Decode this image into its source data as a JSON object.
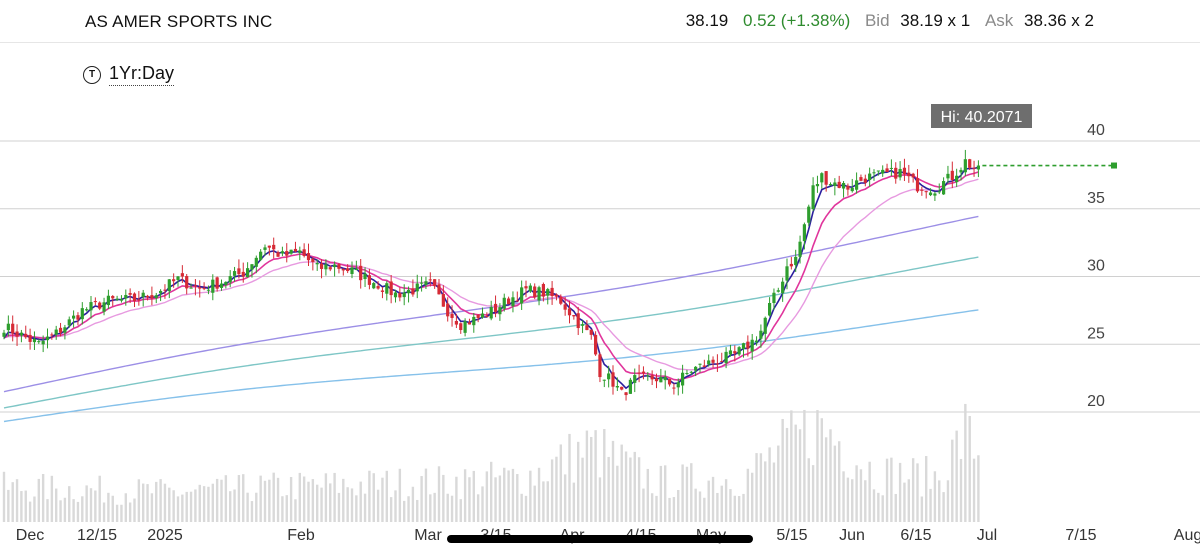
{
  "header": {
    "name": "AS AMER SPORTS INC",
    "last": "38.19",
    "change": "0.52 (+1.38%)",
    "bid_label": "Bid",
    "bid": "38.19 x 1",
    "ask_label": "Ask",
    "ask": "38.36 x 2"
  },
  "range": {
    "icon": "T",
    "label": "1Yr:Day"
  },
  "chart_data": {
    "type": "candlestick",
    "hi_label": "Hi: 40.2071",
    "last_price": 38.19,
    "ylim": [
      15,
      41
    ],
    "yticks": [
      40,
      35,
      30,
      25,
      20
    ],
    "xticks": [
      "Dec",
      "12/15",
      "2025",
      "Feb",
      "Mar",
      "3/15",
      "Apr",
      "4/15",
      "May",
      "5/15",
      "Jun",
      "6/15",
      "Jul",
      "7/15",
      "Aug"
    ],
    "colors": {
      "up": "#2e9e2e",
      "down": "#d62b36",
      "ma5": "#2b1e9e",
      "ma10": "#e0359c",
      "ma20": "#e79ae0",
      "ma50": "#9c8fe6",
      "ma100": "#7ec6c6",
      "ma200": "#86c1ea",
      "volume": "#d9d9d9"
    },
    "close_keypoints": [
      [
        0,
        26.3
      ],
      [
        8,
        25.0
      ],
      [
        12,
        25.8
      ],
      [
        18,
        27.5
      ],
      [
        24,
        28.2
      ],
      [
        30,
        28.3
      ],
      [
        35,
        28.8
      ],
      [
        40,
        29.8
      ],
      [
        45,
        29.1
      ],
      [
        50,
        29.6
      ],
      [
        55,
        30.3
      ],
      [
        60,
        32.3
      ],
      [
        64,
        31.5
      ],
      [
        68,
        31.8
      ],
      [
        72,
        30.6
      ],
      [
        76,
        30.8
      ],
      [
        80,
        30.4
      ],
      [
        85,
        29.6
      ],
      [
        90,
        28.7
      ],
      [
        94,
        29.0
      ],
      [
        98,
        29.4
      ],
      [
        102,
        27.5
      ],
      [
        105,
        26.5
      ],
      [
        108,
        26.8
      ],
      [
        112,
        27.4
      ],
      [
        116,
        28.3
      ],
      [
        120,
        29.0
      ],
      [
        124,
        28.8
      ],
      [
        128,
        28.2
      ],
      [
        132,
        26.6
      ],
      [
        135,
        25.5
      ],
      [
        137,
        23.0
      ],
      [
        140,
        22.2
      ],
      [
        142,
        21.3
      ],
      [
        145,
        22.4
      ],
      [
        150,
        22.5
      ],
      [
        154,
        22.0
      ],
      [
        158,
        23.1
      ],
      [
        162,
        23.6
      ],
      [
        165,
        23.9
      ],
      [
        168,
        24.2
      ],
      [
        172,
        25.2
      ],
      [
        174,
        26.0
      ],
      [
        176,
        27.8
      ],
      [
        178,
        29.0
      ],
      [
        180,
        30.8
      ],
      [
        182,
        31.3
      ],
      [
        184,
        33.8
      ],
      [
        186,
        36.5
      ],
      [
        188,
        37.4
      ],
      [
        190,
        37.0
      ],
      [
        194,
        36.6
      ],
      [
        198,
        37.3
      ],
      [
        202,
        37.5
      ],
      [
        206,
        37.7
      ],
      [
        210,
        36.7
      ],
      [
        214,
        36.5
      ],
      [
        218,
        37.4
      ],
      [
        221,
        38.5
      ],
      [
        223,
        38.0
      ],
      [
        224,
        38.19
      ]
    ],
    "moving_averages": [
      {
        "name": "ma200",
        "start": 19.3,
        "end": 27.3
      },
      {
        "name": "ma100",
        "start": 20.3,
        "end": 31.2
      },
      {
        "name": "ma50",
        "start": 21.5,
        "end": 34.2
      }
    ],
    "volume_keypoints": [
      [
        0,
        0.35
      ],
      [
        40,
        0.3
      ],
      [
        60,
        0.35
      ],
      [
        100,
        0.4
      ],
      [
        120,
        0.45
      ],
      [
        135,
        0.75
      ],
      [
        150,
        0.4
      ],
      [
        170,
        0.45
      ],
      [
        186,
        0.95
      ],
      [
        190,
        0.9
      ],
      [
        200,
        0.5
      ],
      [
        215,
        0.45
      ],
      [
        221,
        0.9
      ],
      [
        224,
        0.7
      ]
    ]
  }
}
